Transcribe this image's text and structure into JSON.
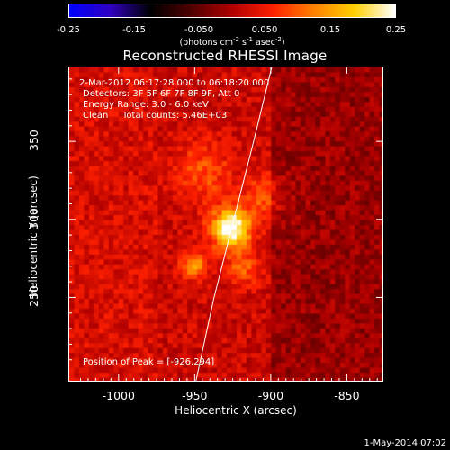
{
  "chart_data": {
    "type": "heatmap",
    "title": "Reconstructed RHESSI Image",
    "xlabel": "Heliocentric X (arcsec)",
    "ylabel": "Heliocentric Y (arcsec)",
    "xlim": [
      -1033,
      -826
    ],
    "ylim": [
      196,
      398
    ],
    "xticks": [
      "-1000",
      "-950",
      "-900",
      "-850"
    ],
    "xtick_values": [
      -1000,
      -950,
      -900,
      -850
    ],
    "yticks": [
      "250",
      "300",
      "350"
    ],
    "ytick_values": [
      250,
      300,
      350
    ],
    "colorbar": {
      "ticks": [
        "-0.25",
        "-0.15",
        "-0.050",
        "0.050",
        "0.15",
        "0.25"
      ],
      "tick_values": [
        -0.25,
        -0.15,
        -0.05,
        0.05,
        0.15,
        0.25
      ],
      "range": [
        -0.25,
        0.25
      ],
      "units_main": "(photons cm",
      "units_exp1": "-2",
      "units_mid1": " s",
      "units_exp2": "-1",
      "units_mid2": " asec",
      "units_exp3": "-2",
      "units_end": ")"
    },
    "peak": {
      "x": -926,
      "y": 294,
      "value": 0.25
    },
    "sources": [
      {
        "x": -926,
        "y": 294,
        "value": 0.25,
        "sigma": 9
      },
      {
        "x": -950,
        "y": 270,
        "value": 0.13,
        "sigma": 6
      },
      {
        "x": -918,
        "y": 268,
        "value": 0.08,
        "sigma": 8
      },
      {
        "x": -945,
        "y": 330,
        "value": 0.07,
        "sigma": 14
      },
      {
        "x": -905,
        "y": 315,
        "value": 0.07,
        "sigma": 10
      }
    ],
    "limb_curve": [
      [
        -950,
        196
      ],
      [
        -938,
        250
      ],
      [
        -925,
        300
      ],
      [
        -912,
        350
      ],
      [
        -900,
        398
      ]
    ],
    "annotations": {
      "time_range": "2-Mar-2012 06:17:28.000 to 06:18:20.000",
      "detectors": "Detectors: 3F 5F 6F 7F 8F 9F, Att 0",
      "energy": "Energy Range: 3.0 - 6.0 keV",
      "method": "Clean",
      "counts": "Total counts: 5.46E+03",
      "peak_label": "Position of Peak = [-926,294]"
    }
  },
  "timestamp": "1-May-2014 07:02",
  "colors": {
    "colormap": [
      "#0000ff",
      "#3000c0",
      "#000000",
      "#500000",
      "#b00000",
      "#ff2000",
      "#ff8000",
      "#ffd000",
      "#ffffff"
    ]
  }
}
